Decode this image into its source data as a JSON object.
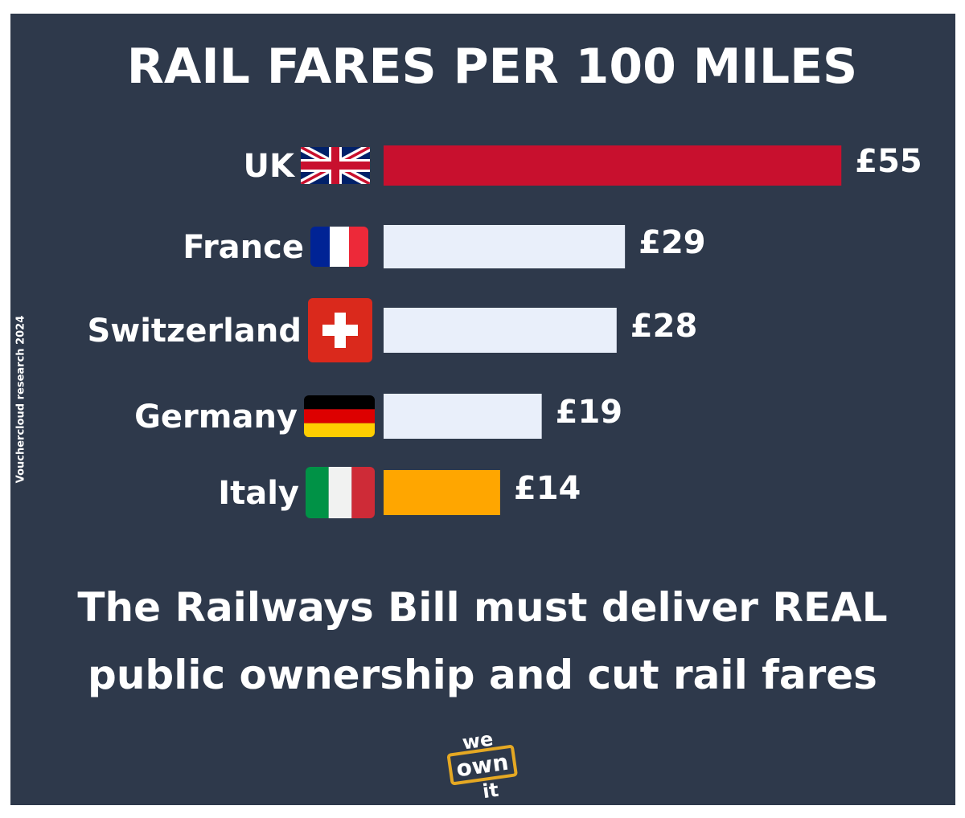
{
  "title": "RAIL FARES PER 100 MILES",
  "source": "Vouchercloud research 2024",
  "chart_data": {
    "type": "bar",
    "orientation": "horizontal",
    "title": "RAIL FARES PER 100 MILES",
    "categories": [
      "UK",
      "France",
      "Switzerland",
      "Germany",
      "Italy"
    ],
    "values": [
      55,
      29,
      28,
      19,
      14
    ],
    "value_labels": [
      "£55",
      "£29",
      "£28",
      "£19",
      "£14"
    ],
    "flags": [
      "uk-flag",
      "france-flag",
      "switzerland-flag",
      "germany-flag",
      "italy-flag"
    ],
    "bar_colors": [
      "#c8102e",
      "#e9effa",
      "#e9effa",
      "#e9effa",
      "#ffa600"
    ],
    "unit": "£",
    "xlabel": "",
    "ylabel": "",
    "grid": false,
    "legend": "none"
  },
  "slogan": {
    "line1": "The Railways Bill must deliver REAL",
    "line2": "public ownership and cut rail fares"
  },
  "logo": {
    "word1": "we",
    "word2": "own",
    "word3": "it"
  },
  "colors": {
    "background": "#2e394b",
    "text": "#ffffff",
    "uk_bar": "#c8102e",
    "neutral_bar": "#e9effa",
    "italy_bar": "#ffa600"
  }
}
